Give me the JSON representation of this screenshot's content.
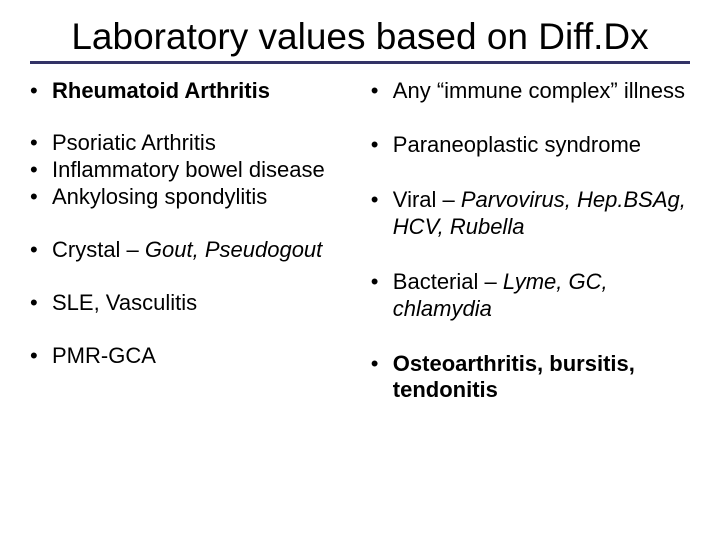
{
  "title": "Laboratory values based on Diff.Dx",
  "divider_color": "#333366",
  "text_color": "#000000",
  "background_color": "#ffffff",
  "title_fontsize": 37,
  "body_fontsize": 22,
  "left": {
    "items": [
      {
        "bold": "Rheumatoid Arthritis",
        "normal": "",
        "italic": "",
        "gap_after": 26
      },
      {
        "bold": "",
        "normal": "Psoriatic Arthritis",
        "italic": "",
        "gap_after": 0
      },
      {
        "bold": "",
        "normal": "Inflammatory bowel disease",
        "italic": "",
        "gap_after": 0
      },
      {
        "bold": "",
        "normal": "Ankylosing spondylitis",
        "italic": "",
        "gap_after": 26
      },
      {
        "bold": "",
        "normal": "Crystal – ",
        "italic": "Gout, Pseudogout",
        "gap_after": 26
      },
      {
        "bold": "",
        "normal": "SLE, Vasculitis",
        "italic": "",
        "gap_after": 26
      },
      {
        "bold": "",
        "normal": "PMR-GCA",
        "italic": "",
        "gap_after": 0
      }
    ]
  },
  "right": {
    "items": [
      {
        "bold": "",
        "normal": "Any “immune complex” illness",
        "italic": "",
        "gap_after": 28
      },
      {
        "bold": "",
        "normal": "Paraneoplastic syndrome",
        "italic": "",
        "gap_after": 28
      },
      {
        "bold": "",
        "normal": "Viral – ",
        "italic": "Parvovirus, Hep.BSAg, HCV, Rubella",
        "gap_after": 28
      },
      {
        "bold": "",
        "normal": "Bacterial – ",
        "italic": "Lyme, GC, chlamydia",
        "gap_after": 28
      },
      {
        "bold": "Osteoarthritis, bursitis, tendonitis",
        "normal": "",
        "italic": "",
        "gap_after": 0
      }
    ]
  }
}
